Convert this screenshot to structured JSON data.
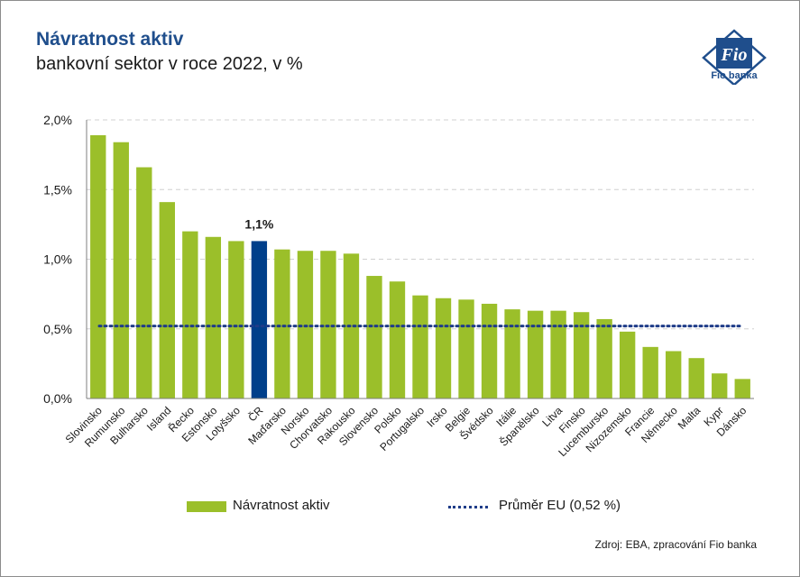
{
  "header": {
    "title": "Návratnost aktiv",
    "subtitle": "bankovní sektor v roce 2022, v %"
  },
  "logo": {
    "text": "Fio banka",
    "mark": "Fio"
  },
  "chart_data": {
    "type": "bar",
    "title": "Návratnost aktiv",
    "subtitle": "bankovní sektor v roce 2022, v %",
    "categories": [
      "Slovinsko",
      "Rumunsko",
      "Bulharsko",
      "Island",
      "Řecko",
      "Estonsko",
      "Lotyšsko",
      "ČR",
      "Maďarsko",
      "Norsko",
      "Chorvatsko",
      "Rakousko",
      "Slovensko",
      "Polsko",
      "Portugalsko",
      "Irsko",
      "Belgie",
      "Švédsko",
      "Itálie",
      "Španělsko",
      "Litva",
      "Finsko",
      "Lucembursko",
      "Nizozemsko",
      "Francie",
      "Německo",
      "Malta",
      "Kypr",
      "Dánsko"
    ],
    "series": [
      {
        "name": "Návratnost aktiv",
        "values": [
          1.89,
          1.84,
          1.66,
          1.41,
          1.2,
          1.16,
          1.13,
          1.13,
          1.07,
          1.06,
          1.06,
          1.04,
          0.88,
          0.84,
          0.74,
          0.72,
          0.71,
          0.68,
          0.64,
          0.63,
          0.63,
          0.62,
          0.57,
          0.48,
          0.37,
          0.34,
          0.29,
          0.18,
          0.14
        ],
        "color": "#9bbf2a",
        "highlight": {
          "category": "ČR",
          "color": "#003f8a",
          "label": "1,1%"
        }
      }
    ],
    "reference_line": {
      "name": "Průměr EU (0,52 %)",
      "value": 0.52,
      "color": "#1f3c88",
      "style": "dotted"
    },
    "y_ticks": [
      "0,0%",
      "0,5%",
      "1,0%",
      "1,5%",
      "2,0%"
    ],
    "ylim": [
      0,
      2.0
    ],
    "grid": "horizontal dashed",
    "legend_position": "bottom"
  },
  "legend": {
    "bar_label": "Návratnost aktiv",
    "line_label": "Průměr EU (0,52 %)"
  },
  "source": "Zdroj: EBA, zpracování Fio banka"
}
